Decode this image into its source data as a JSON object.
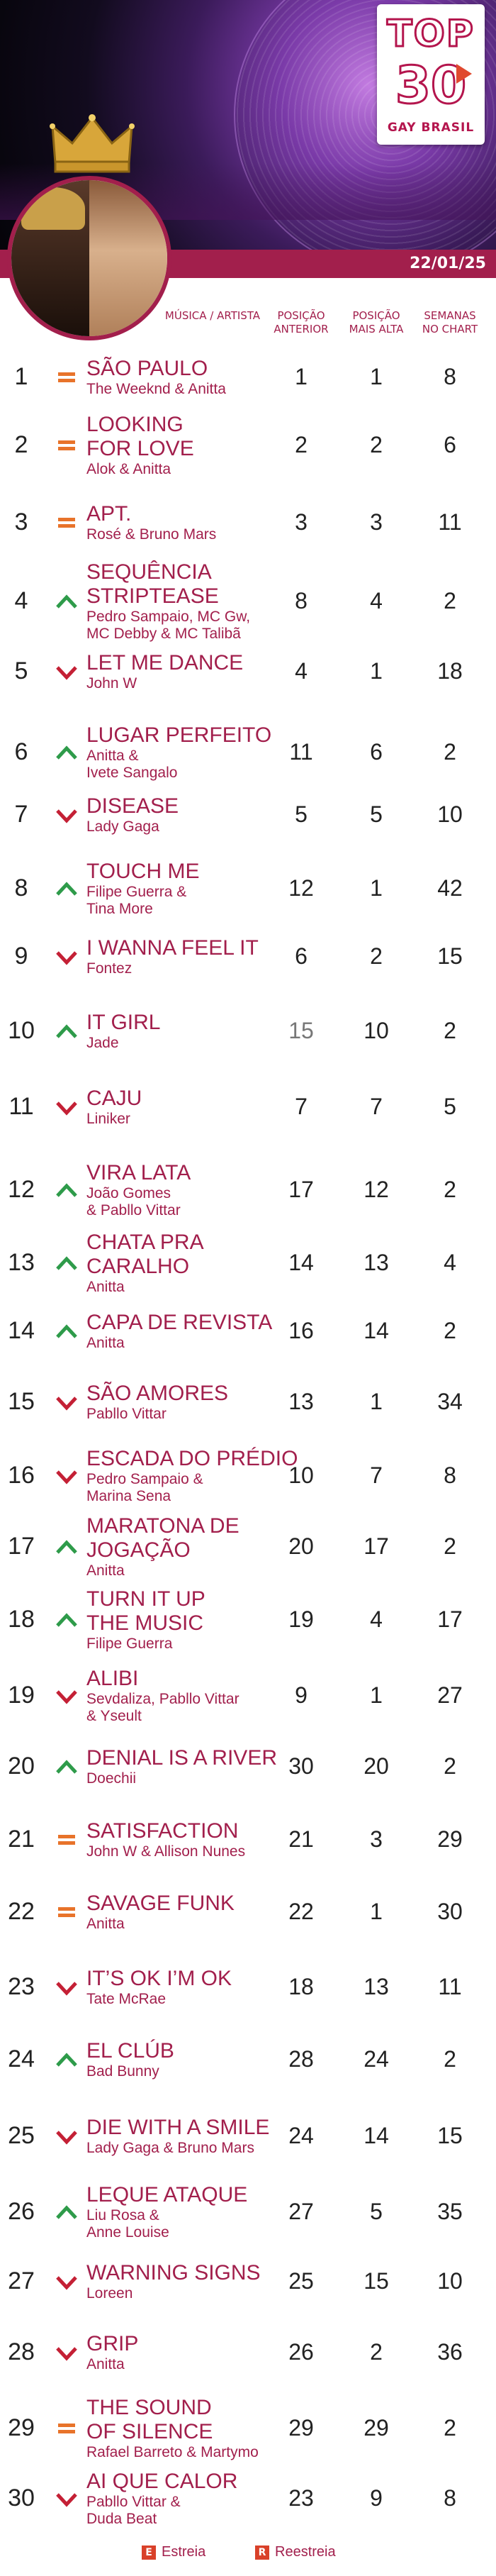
{
  "logo": {
    "top": "TOP",
    "number": "30",
    "subtitle": "GAY BRASIL"
  },
  "date": "22/01/25",
  "columns": {
    "song": "MÚSICA / ARTISTA",
    "prev_l1": "POSIÇÃO",
    "prev_l2": "ANTERIOR",
    "peak_l1": "POSIÇÃO",
    "peak_l2": "MAIS ALTA",
    "weeks_l1": "SEMANAS",
    "weeks_l2": "NO CHART"
  },
  "colors": {
    "accent": "#a21f4c",
    "up": "#2e9b4a",
    "down": "#c42035",
    "same": "#e8732a"
  },
  "legend": {
    "new_box": "E",
    "new_label": "Estreia",
    "re_box": "R",
    "re_label": "Reestreia"
  },
  "entries": [
    {
      "rank": "1",
      "move": "same",
      "title": [
        "SÃO PAULO"
      ],
      "artist": [
        "The Weeknd & Anitta"
      ],
      "prev": "1",
      "peak": "1",
      "weeks": "8"
    },
    {
      "rank": "2",
      "move": "same",
      "title": [
        "LOOKING",
        "FOR LOVE"
      ],
      "artist": [
        "Alok & Anitta"
      ],
      "prev": "2",
      "peak": "2",
      "weeks": "6"
    },
    {
      "rank": "3",
      "move": "same",
      "title": [
        "APT."
      ],
      "artist": [
        "Rosé & Bruno Mars"
      ],
      "prev": "3",
      "peak": "3",
      "weeks": "11"
    },
    {
      "rank": "4",
      "move": "up",
      "title": [
        "SEQUÊNCIA",
        "STRIPTEASE"
      ],
      "artist": [
        "Pedro Sampaio, MC Gw,",
        "MC Debby & MC Talibã"
      ],
      "prev": "8",
      "peak": "4",
      "weeks": "2"
    },
    {
      "rank": "5",
      "move": "down",
      "title": [
        "LET ME DANCE"
      ],
      "artist": [
        "John W"
      ],
      "prev": "4",
      "peak": "1",
      "weeks": "18"
    },
    {
      "rank": "6",
      "move": "up",
      "title": [
        "LUGAR PERFEITO"
      ],
      "artist": [
        "Anitta &",
        "Ivete Sangalo"
      ],
      "prev": "11",
      "peak": "6",
      "weeks": "2"
    },
    {
      "rank": "7",
      "move": "down",
      "title": [
        "DISEASE"
      ],
      "artist": [
        "Lady Gaga"
      ],
      "prev": "5",
      "peak": "5",
      "weeks": "10"
    },
    {
      "rank": "8",
      "move": "up",
      "title": [
        "TOUCH ME"
      ],
      "artist": [
        "Filipe Guerra &",
        "Tina More"
      ],
      "prev": "12",
      "peak": "1",
      "weeks": "42"
    },
    {
      "rank": "9",
      "move": "down",
      "title": [
        "I WANNA FEEL IT"
      ],
      "artist": [
        "Fontez"
      ],
      "prev": "6",
      "peak": "2",
      "weeks": "15"
    },
    {
      "rank": "10",
      "move": "up",
      "title": [
        "IT GIRL"
      ],
      "artist": [
        "Jade"
      ],
      "prev": "15",
      "peak": "10",
      "weeks": "2",
      "prev_grey": true
    },
    {
      "rank": "11",
      "move": "down",
      "title": [
        "CAJU"
      ],
      "artist": [
        "Liniker"
      ],
      "prev": "7",
      "peak": "7",
      "weeks": "5"
    },
    {
      "rank": "12",
      "move": "up",
      "title": [
        "VIRA LATA"
      ],
      "artist": [
        "João Gomes",
        "& Pabllo Vittar"
      ],
      "prev": "17",
      "peak": "12",
      "weeks": "2"
    },
    {
      "rank": "13",
      "move": "up",
      "title": [
        "CHATA PRA",
        "CARALHO"
      ],
      "artist": [
        "Anitta"
      ],
      "prev": "14",
      "peak": "13",
      "weeks": "4"
    },
    {
      "rank": "14",
      "move": "up",
      "title": [
        "CAPA DE REVISTA"
      ],
      "artist": [
        "Anitta"
      ],
      "prev": "16",
      "peak": "14",
      "weeks": "2"
    },
    {
      "rank": "15",
      "move": "down",
      "title": [
        "SÃO AMORES"
      ],
      "artist": [
        "Pabllo Vittar"
      ],
      "prev": "13",
      "peak": "1",
      "weeks": "34"
    },
    {
      "rank": "16",
      "move": "down",
      "title": [
        "ESCADA DO PRÉDIO"
      ],
      "artist": [
        "Pedro Sampaio &",
        "Marina Sena"
      ],
      "prev": "10",
      "peak": "7",
      "weeks": "8"
    },
    {
      "rank": "17",
      "move": "up",
      "title": [
        "MARATONA DE",
        "JOGAÇÃO"
      ],
      "artist": [
        "Anitta"
      ],
      "prev": "20",
      "peak": "17",
      "weeks": "2"
    },
    {
      "rank": "18",
      "move": "up",
      "title": [
        "TURN IT UP",
        "THE MUSIC"
      ],
      "artist": [
        "Filipe Guerra"
      ],
      "prev": "19",
      "peak": "4",
      "weeks": "17"
    },
    {
      "rank": "19",
      "move": "down",
      "title": [
        "ALIBI"
      ],
      "artist": [
        "Sevdaliza, Pabllo Vittar",
        "& Yseult"
      ],
      "prev": "9",
      "peak": "1",
      "weeks": "27"
    },
    {
      "rank": "20",
      "move": "up",
      "title": [
        "DENIAL IS A RIVER"
      ],
      "artist": [
        "Doechii"
      ],
      "prev": "30",
      "peak": "20",
      "weeks": "2"
    },
    {
      "rank": "21",
      "move": "same",
      "title": [
        "SATISFACTION"
      ],
      "artist": [
        "John W & Allison Nunes"
      ],
      "prev": "21",
      "peak": "3",
      "weeks": "29"
    },
    {
      "rank": "22",
      "move": "same",
      "title": [
        "SAVAGE FUNK"
      ],
      "artist": [
        "Anitta"
      ],
      "prev": "22",
      "peak": "1",
      "weeks": "30"
    },
    {
      "rank": "23",
      "move": "down",
      "title": [
        "IT’S OK I’M OK"
      ],
      "artist": [
        "Tate McRae"
      ],
      "prev": "18",
      "peak": "13",
      "weeks": "11"
    },
    {
      "rank": "24",
      "move": "up",
      "title": [
        "EL CLÚB"
      ],
      "artist": [
        "Bad Bunny"
      ],
      "prev": "28",
      "peak": "24",
      "weeks": "2"
    },
    {
      "rank": "25",
      "move": "down",
      "title": [
        "DIE WITH A SMILE"
      ],
      "artist": [
        "Lady Gaga & Bruno Mars"
      ],
      "prev": "24",
      "peak": "14",
      "weeks": "15"
    },
    {
      "rank": "26",
      "move": "up",
      "title": [
        "LEQUE ATAQUE"
      ],
      "artist": [
        "Liu Rosa &",
        "Anne Louise"
      ],
      "prev": "27",
      "peak": "5",
      "weeks": "35"
    },
    {
      "rank": "27",
      "move": "down",
      "title": [
        "WARNING SIGNS"
      ],
      "artist": [
        "Loreen"
      ],
      "prev": "25",
      "peak": "15",
      "weeks": "10"
    },
    {
      "rank": "28",
      "move": "down",
      "title": [
        "GRIP"
      ],
      "artist": [
        "Anitta"
      ],
      "prev": "26",
      "peak": "2",
      "weeks": "36"
    },
    {
      "rank": "29",
      "move": "same",
      "title": [
        "THE SOUND",
        "OF SILENCE"
      ],
      "artist": [
        "Rafael Barreto & Martymo"
      ],
      "prev": "29",
      "peak": "29",
      "weeks": "2"
    },
    {
      "rank": "30",
      "move": "down",
      "title": [
        "AI QUE CALOR"
      ],
      "artist": [
        "Pabllo Vittar &",
        "Duda Beat"
      ],
      "prev": "23",
      "peak": "9",
      "weeks": "8"
    }
  ]
}
